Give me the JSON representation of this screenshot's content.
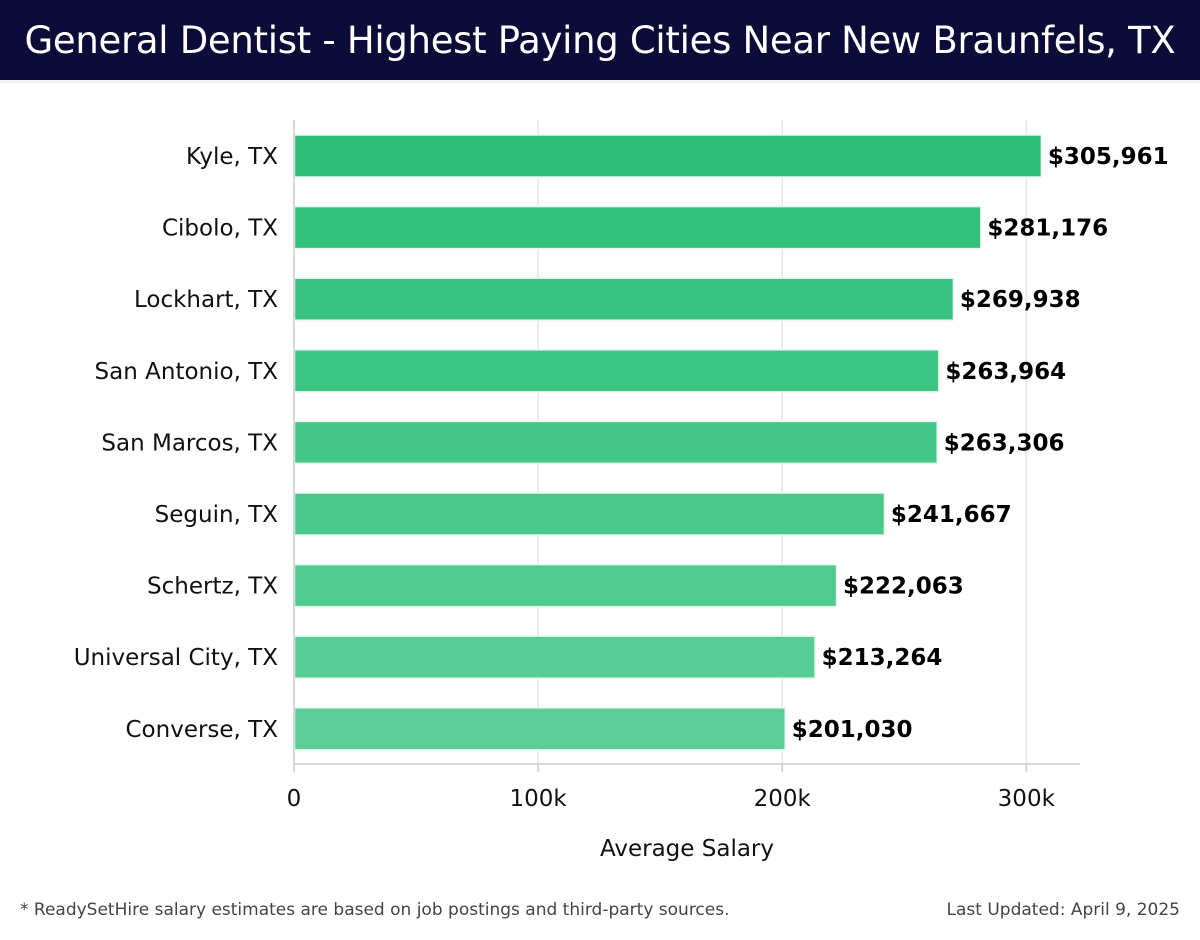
{
  "header": {
    "title": "General Dentist - Highest Paying Cities Near New Braunfels, TX"
  },
  "chart_data": {
    "type": "bar",
    "orientation": "horizontal",
    "title": "General Dentist - Highest Paying Cities Near New Braunfels, TX",
    "categories": [
      "Kyle, TX",
      "Cibolo, TX",
      "Lockhart, TX",
      "San Antonio, TX",
      "San Marcos, TX",
      "Seguin, TX",
      "Schertz, TX",
      "Universal City, TX",
      "Converse, TX"
    ],
    "values": [
      305961,
      281176,
      269938,
      263964,
      263306,
      241667,
      222063,
      213264,
      201030
    ],
    "value_labels": [
      "$305,961",
      "$281,176",
      "$269,938",
      "$263,964",
      "$263,306",
      "$241,667",
      "$222,063",
      "$213,264",
      "$201,030"
    ],
    "xlabel": "Average Salary",
    "ylabel": "",
    "xlim": [
      0,
      322000
    ],
    "xticks": [
      0,
      100000,
      200000,
      300000
    ],
    "xtick_labels": [
      "0",
      "100k",
      "200k",
      "300k"
    ],
    "grid": true,
    "colors": {
      "bar_top": "#2bbf76",
      "bar_bottom": "#5ccf98",
      "grid": "#e6e6e6",
      "axis": "#cccccc"
    }
  },
  "footer": {
    "note": "* ReadySetHire salary estimates are based on job postings and third-party sources.",
    "updated": "Last Updated: April 9, 2025"
  }
}
